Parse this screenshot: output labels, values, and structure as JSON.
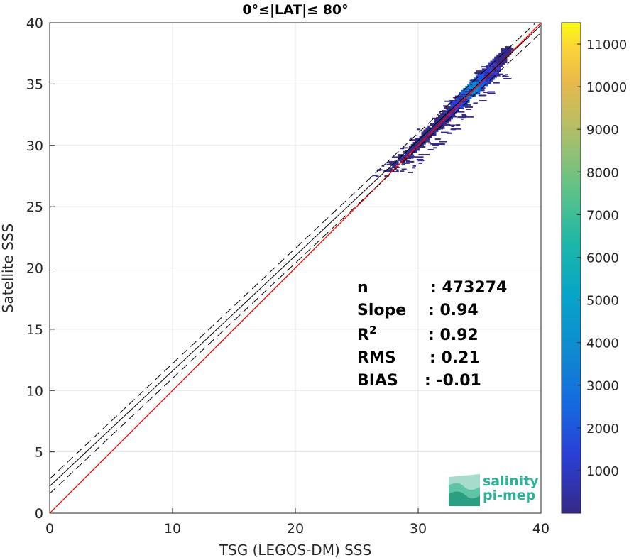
{
  "chart_data": {
    "type": "heatmap",
    "title": "0°≤|LAT|≤ 80°",
    "xlabel": "TSG (LEGOS-DM) SSS",
    "ylabel": "Satellite SSS",
    "xlim": [
      0,
      40
    ],
    "ylim": [
      0,
      40
    ],
    "xticks": [
      "0",
      "10",
      "20",
      "30",
      "40"
    ],
    "yticks": [
      "0",
      "5",
      "10",
      "15",
      "20",
      "25",
      "30",
      "35",
      "40"
    ],
    "grid": true,
    "colorbar": {
      "range": [
        0,
        11500
      ],
      "ticks": [
        "1000",
        "2000",
        "3000",
        "4000",
        "5000",
        "6000",
        "7000",
        "8000",
        "9000",
        "10000",
        "11000"
      ],
      "colormap": "parula"
    },
    "lines": [
      {
        "kind": "identity",
        "color": "#ff0000",
        "style": "solid",
        "x": [
          0,
          40
        ],
        "y": [
          0,
          40
        ]
      },
      {
        "kind": "fit",
        "color": "#000000",
        "style": "solid",
        "x": [
          0,
          40
        ],
        "y": [
          2.2,
          39.8
        ]
      },
      {
        "kind": "fit_upper",
        "color": "#000000",
        "style": "dashed",
        "x": [
          0,
          40
        ],
        "y": [
          2.8,
          40.4
        ]
      },
      {
        "kind": "fit_lower",
        "color": "#000000",
        "style": "dashed",
        "x": [
          0,
          40
        ],
        "y": [
          1.6,
          39.2
        ]
      }
    ],
    "density_center": [
      34.3,
      34.5
    ],
    "density_extent": {
      "x": [
        27.5,
        36.8
      ],
      "y": [
        27.5,
        36.8
      ]
    },
    "stats": [
      {
        "label": "n",
        "value": ": 473274"
      },
      {
        "label": "Slope",
        "value": ": 0.94"
      },
      {
        "label": "R",
        "sup": "2",
        "value": ": 0.92"
      },
      {
        "label": "RMS",
        "value": ": 0.21"
      },
      {
        "label": "BIAS",
        "value": ": -0.01"
      }
    ]
  },
  "logo": {
    "line1": "salinity",
    "line2": "pi-mep"
  }
}
